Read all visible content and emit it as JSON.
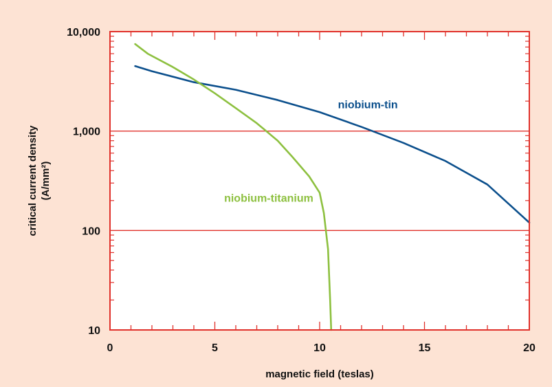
{
  "chart_data": {
    "type": "line",
    "title": "",
    "xlabel": "magnetic field (teslas)",
    "ylabel": "critical current density",
    "ylabel_unit": "(A/mm²)",
    "xlim": [
      0,
      20
    ],
    "ylim": [
      10,
      10000
    ],
    "yscale": "log",
    "x_ticks": [
      0,
      5,
      10,
      15,
      20
    ],
    "x_tick_labels": [
      "0",
      "5",
      "10",
      "15",
      "20"
    ],
    "y_ticks": [
      10,
      100,
      1000,
      10000
    ],
    "y_tick_labels": [
      "10",
      "100",
      "1,000",
      "10,000"
    ],
    "grid": "horizontal",
    "colors": {
      "background": "#fde3d4",
      "plot_area": "#ffffff",
      "frame": "#e0302a",
      "gridline": "#e0302a"
    },
    "series": [
      {
        "name": "niobium-tin",
        "color": "#0b4f8c",
        "x": [
          1.2,
          2,
          4,
          6,
          8,
          10,
          12,
          14,
          16,
          18,
          20
        ],
        "y": [
          4500,
          4000,
          3100,
          2600,
          2050,
          1550,
          1100,
          760,
          500,
          290,
          120
        ]
      },
      {
        "name": "niobium-titanium",
        "color": "#8dc03f",
        "x": [
          1.2,
          1.8,
          3,
          4,
          5,
          6,
          7,
          8,
          8.7,
          9.5,
          10,
          10.2,
          10.4,
          10.5,
          10.55
        ],
        "y": [
          7500,
          6000,
          4400,
          3300,
          2400,
          1700,
          1200,
          800,
          550,
          350,
          240,
          150,
          65,
          20,
          10
        ]
      }
    ]
  }
}
